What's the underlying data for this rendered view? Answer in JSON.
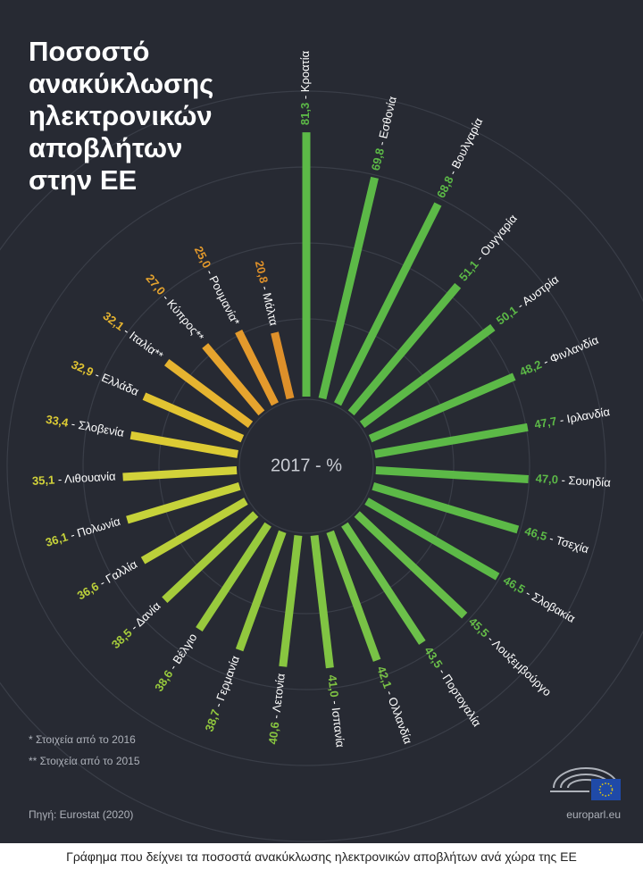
{
  "chart_data": {
    "type": "radial-bar",
    "title_lines": [
      "Ποσοστό",
      "ανακύκλωσης",
      "ηλεκτρονικών",
      "αποβλήτων",
      "στην ΕΕ"
    ],
    "center_label": "2017 - %",
    "label_separator": " - ",
    "categories": [
      "Κροατία",
      "Εσθονία",
      "Βουλγαρία",
      "Ουγγαρία",
      "Αυστρία",
      "Φινλανδία",
      "Ιρλανδία",
      "Σουηδία",
      "Τσεχία",
      "Σλοβακία",
      "Λουξεμβούργο",
      "Πορτογαλία",
      "Ολλανδία",
      "Ισπανία",
      "Λετονία",
      "Γερμανία",
      "Βέλγιο",
      "Δανία",
      "Γαλλία",
      "Πολωνία",
      "Λιθουανία",
      "Σλοβενία",
      "Ελλάδα",
      "Ιταλία**",
      "Κύπρος**",
      "Ρουμανία*",
      "Μάλτα"
    ],
    "values": [
      81.3,
      69.8,
      68.8,
      51.1,
      50.1,
      48.2,
      47.7,
      47.0,
      46.5,
      46.5,
      45.5,
      43.5,
      42.1,
      41.0,
      40.6,
      38.7,
      38.6,
      38.5,
      36.6,
      36.1,
      35.1,
      33.4,
      32.9,
      32.1,
      27.0,
      25.0,
      20.8
    ],
    "value_labels": [
      "81,3",
      "69,8",
      "68,8",
      "51,1",
      "50,1",
      "48,2",
      "47,7",
      "47,0",
      "46,5",
      "46,5",
      "45,5",
      "43,5",
      "42,1",
      "41,0",
      "40,6",
      "38,7",
      "38,6",
      "38,5",
      "36,6",
      "36,1",
      "35,1",
      "33,4",
      "32,9",
      "32,1",
      "27,0",
      "25,0",
      "20,8"
    ],
    "colors": [
      "#5cb947",
      "#5cb947",
      "#5cb947",
      "#5cb947",
      "#5cb947",
      "#5cb947",
      "#5cb947",
      "#5cb947",
      "#5cb947",
      "#5cb947",
      "#66bd48",
      "#6cc04a",
      "#78c246",
      "#80c443",
      "#88c640",
      "#92c83e",
      "#98ca3d",
      "#a6cc3b",
      "#bcd03a",
      "#c6d23a",
      "#d2d23a",
      "#dccb34",
      "#e2c432",
      "#e6b430",
      "#e6a42e",
      "#e49a2c",
      "#de902a"
    ],
    "footnotes": [
      "* Στοιχεία από το 2016",
      "** Στοιχεία από το 2015"
    ],
    "source": "Πηγή: Eurostat (2020)",
    "site": "europarl.eu",
    "caption": "Γράφημα που δείχνει τα ποσοστά ανακύκλωσης ηλεκτρονικών αποβλήτων ανά χώρα της ΕΕ"
  }
}
